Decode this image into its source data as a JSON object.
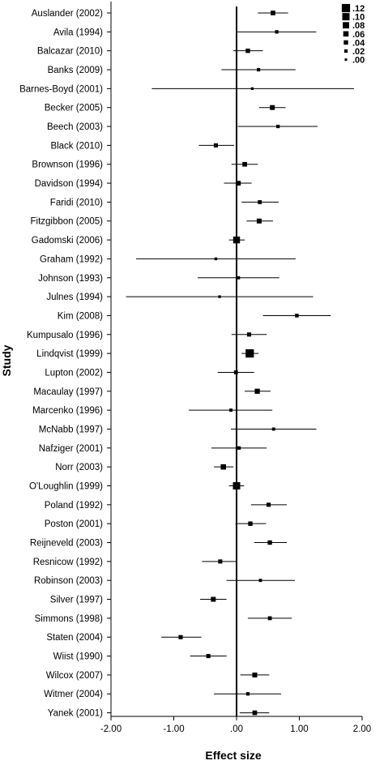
{
  "chart_data": {
    "type": "forest",
    "xlabel": "Effect size",
    "ylabel": "Study",
    "xlim": [
      -2.0,
      2.0
    ],
    "xticks": [
      -2.0,
      -1.0,
      0.0,
      1.0,
      2.0
    ],
    "xtick_labels": [
      "-2.00",
      "-1.00",
      ".00",
      "1.00",
      "2.00"
    ],
    "reference_line": 0.0,
    "legend": {
      "position": "top-right",
      "title": "",
      "weights": [
        0.12,
        0.1,
        0.08,
        0.06,
        0.04,
        0.02,
        0.0
      ],
      "labels": [
        ".12",
        ".10",
        ".08",
        ".06",
        ".04",
        ".02",
        ".00"
      ]
    },
    "studies": [
      {
        "name": "Auslander (2002)",
        "effect": 0.58,
        "lower": 0.34,
        "upper": 0.82,
        "weight": 0.045
      },
      {
        "name": "Avila (1994)",
        "effect": 0.64,
        "lower": 0.0,
        "upper": 1.27,
        "weight": 0.02
      },
      {
        "name": "Balcazar (2010)",
        "effect": 0.18,
        "lower": -0.05,
        "upper": 0.42,
        "weight": 0.04
      },
      {
        "name": "Banks (2009)",
        "effect": 0.35,
        "lower": -0.24,
        "upper": 0.94,
        "weight": 0.02
      },
      {
        "name": "Barnes-Boyd (2001)",
        "effect": 0.25,
        "lower": -1.35,
        "upper": 1.87,
        "weight": 0.005
      },
      {
        "name": "Becker (2005)",
        "effect": 0.57,
        "lower": 0.36,
        "upper": 0.78,
        "weight": 0.05
      },
      {
        "name": "Beech (2003)",
        "effect": 0.66,
        "lower": 0.02,
        "upper": 1.29,
        "weight": 0.02
      },
      {
        "name": "Black (2010)",
        "effect": -0.33,
        "lower": -0.6,
        "upper": -0.04,
        "weight": 0.035
      },
      {
        "name": "Brownson (1996)",
        "effect": 0.13,
        "lower": -0.08,
        "upper": 0.34,
        "weight": 0.045
      },
      {
        "name": "Davidson (1994)",
        "effect": 0.03,
        "lower": -0.2,
        "upper": 0.24,
        "weight": 0.045
      },
      {
        "name": "Faridi (2010)",
        "effect": 0.37,
        "lower": 0.08,
        "upper": 0.67,
        "weight": 0.03
      },
      {
        "name": "Fitzgibbon (2005)",
        "effect": 0.36,
        "lower": 0.16,
        "upper": 0.58,
        "weight": 0.05
      },
      {
        "name": "Gadomski (2006)",
        "effect": 0.0,
        "lower": -0.12,
        "upper": 0.13,
        "weight": 0.09
      },
      {
        "name": "Graham (1992)",
        "effect": -0.33,
        "lower": -1.6,
        "upper": 0.94,
        "weight": 0.008
      },
      {
        "name": "Johnson (1993)",
        "effect": 0.03,
        "lower": -0.62,
        "upper": 0.68,
        "weight": 0.015
      },
      {
        "name": "Julnes (1994)",
        "effect": -0.27,
        "lower": -1.76,
        "upper": 1.22,
        "weight": 0.005
      },
      {
        "name": "Kim (2008)",
        "effect": 0.96,
        "lower": 0.42,
        "upper": 1.5,
        "weight": 0.025
      },
      {
        "name": "Kumpusalo (1996)",
        "effect": 0.2,
        "lower": -0.08,
        "upper": 0.48,
        "weight": 0.035
      },
      {
        "name": "Lindqvist (1999)",
        "effect": 0.21,
        "lower": 0.08,
        "upper": 0.35,
        "weight": 0.12
      },
      {
        "name": "Lupton (2002)",
        "effect": -0.01,
        "lower": -0.3,
        "upper": 0.28,
        "weight": 0.03
      },
      {
        "name": "Macaulay (1997)",
        "effect": 0.33,
        "lower": 0.13,
        "upper": 0.54,
        "weight": 0.055
      },
      {
        "name": "Marcenko (1996)",
        "effect": -0.09,
        "lower": -0.76,
        "upper": 0.57,
        "weight": 0.015
      },
      {
        "name": "McNabb (1997)",
        "effect": 0.59,
        "lower": -0.09,
        "upper": 1.27,
        "weight": 0.015
      },
      {
        "name": "Nafziger (2001)",
        "effect": 0.04,
        "lower": -0.4,
        "upper": 0.48,
        "weight": 0.02
      },
      {
        "name": "Norr (2003)",
        "effect": -0.21,
        "lower": -0.36,
        "upper": -0.05,
        "weight": 0.06
      },
      {
        "name": "O'Loughlin (1999)",
        "effect": 0.0,
        "lower": -0.12,
        "upper": 0.12,
        "weight": 0.1
      },
      {
        "name": "Poland (1992)",
        "effect": 0.51,
        "lower": 0.23,
        "upper": 0.8,
        "weight": 0.035
      },
      {
        "name": "Poston (2001)",
        "effect": 0.22,
        "lower": -0.02,
        "upper": 0.47,
        "weight": 0.04
      },
      {
        "name": "Reijneveld (2003)",
        "effect": 0.53,
        "lower": 0.28,
        "upper": 0.8,
        "weight": 0.04
      },
      {
        "name": "Resnicow (1992)",
        "effect": -0.26,
        "lower": -0.55,
        "upper": 0.01,
        "weight": 0.035
      },
      {
        "name": "Robinson (2003)",
        "effect": 0.38,
        "lower": -0.16,
        "upper": 0.93,
        "weight": 0.015
      },
      {
        "name": "Silver (1997)",
        "effect": -0.37,
        "lower": -0.58,
        "upper": -0.16,
        "weight": 0.05
      },
      {
        "name": "Simmons (1998)",
        "effect": 0.53,
        "lower": 0.18,
        "upper": 0.88,
        "weight": 0.03
      },
      {
        "name": "Staten (2004)",
        "effect": -0.89,
        "lower": -1.2,
        "upper": -0.56,
        "weight": 0.035
      },
      {
        "name": "Wiist (1990)",
        "effect": -0.45,
        "lower": -0.74,
        "upper": -0.16,
        "weight": 0.035
      },
      {
        "name": "Wilcox (2007)",
        "effect": 0.29,
        "lower": 0.06,
        "upper": 0.52,
        "weight": 0.05
      },
      {
        "name": "Witmer (2004)",
        "effect": 0.18,
        "lower": -0.36,
        "upper": 0.71,
        "weight": 0.02
      },
      {
        "name": "Yanek (2001)",
        "effect": 0.29,
        "lower": 0.05,
        "upper": 0.52,
        "weight": 0.045
      }
    ]
  }
}
